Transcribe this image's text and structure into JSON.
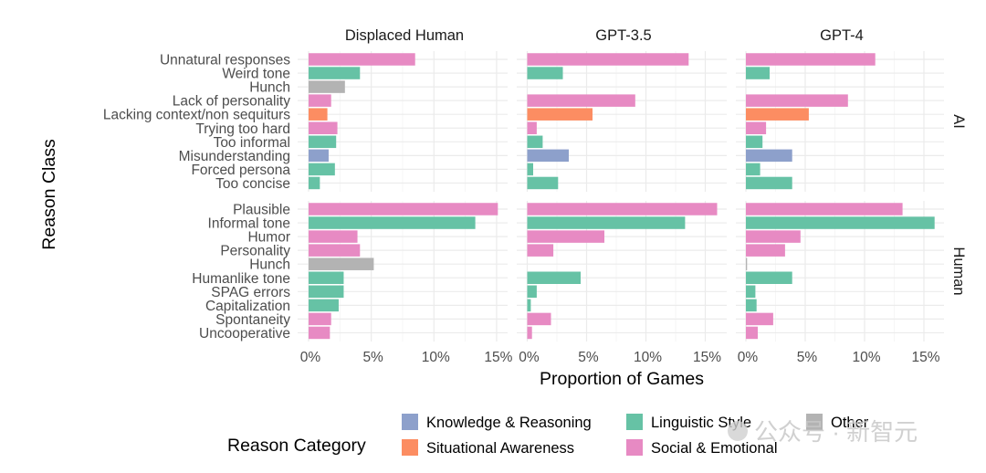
{
  "chart_data": {
    "type": "bar",
    "orientation": "horizontal",
    "facets": {
      "columns": [
        "Displaced Human",
        "GPT-3.5",
        "GPT-4"
      ],
      "rows": [
        "AI",
        "Human"
      ]
    },
    "xlabel": "Proportion of Games",
    "ylabel": "Reason Class",
    "x_ticks": [
      "0%",
      "5%",
      "10%",
      "15%"
    ],
    "xlim": [
      0,
      16.5
    ],
    "x_unit": "percent",
    "grid": true,
    "legend": {
      "title": "Reason Category",
      "placement": "bottom",
      "entries": [
        {
          "name": "Knowledge & Reasoning",
          "color": "#8DA0CB"
        },
        {
          "name": "Situational Awareness",
          "color": "#FC8D62"
        },
        {
          "name": "Linguistic Style",
          "color": "#66C2A5"
        },
        {
          "name": "Social & Emotional",
          "color": "#E78AC3"
        },
        {
          "name": "Other",
          "color": "#B3B3B3"
        }
      ]
    },
    "groups": [
      {
        "row": "AI",
        "categories": [
          {
            "label": "Unnatural responses",
            "category": "Social & Emotional"
          },
          {
            "label": "Weird tone",
            "category": "Linguistic Style"
          },
          {
            "label": "Hunch",
            "category": "Other"
          },
          {
            "label": "Lack of personality",
            "category": "Social & Emotional"
          },
          {
            "label": "Lacking context/non sequiturs",
            "category": "Situational Awareness"
          },
          {
            "label": "Trying too hard",
            "category": "Social & Emotional"
          },
          {
            "label": "Too informal",
            "category": "Linguistic Style"
          },
          {
            "label": "Misunderstanding",
            "category": "Knowledge & Reasoning"
          },
          {
            "label": "Forced persona",
            "category": "Linguistic Style"
          },
          {
            "label": "Too concise",
            "category": "Linguistic Style"
          }
        ],
        "series": [
          {
            "name": "Displaced Human",
            "values": [
              8.5,
              4.1,
              2.9,
              1.8,
              1.5,
              2.3,
              2.2,
              1.6,
              2.1,
              0.9
            ]
          },
          {
            "name": "GPT-3.5",
            "values": [
              13.6,
              3.0,
              0,
              9.1,
              5.5,
              0.8,
              1.3,
              3.5,
              0.5,
              2.6
            ]
          },
          {
            "name": "GPT-4",
            "values": [
              10.9,
              2.0,
              0,
              8.6,
              5.3,
              1.7,
              1.4,
              3.9,
              1.2,
              3.9
            ]
          }
        ]
      },
      {
        "row": "Human",
        "categories": [
          {
            "label": "Plausible",
            "category": "Social & Emotional"
          },
          {
            "label": "Informal tone",
            "category": "Linguistic Style"
          },
          {
            "label": "Humor",
            "category": "Social & Emotional"
          },
          {
            "label": "Personality",
            "category": "Social & Emotional"
          },
          {
            "label": "Hunch",
            "category": "Other"
          },
          {
            "label": "Humanlike tone",
            "category": "Linguistic Style"
          },
          {
            "label": "SPAG errors",
            "category": "Linguistic Style"
          },
          {
            "label": "Capitalization",
            "category": "Linguistic Style"
          },
          {
            "label": "Spontaneity",
            "category": "Social & Emotional"
          },
          {
            "label": "Uncooperative",
            "category": "Social & Emotional"
          }
        ],
        "series": [
          {
            "name": "Displaced Human",
            "values": [
              15.1,
              13.3,
              3.9,
              4.1,
              5.2,
              2.8,
              2.8,
              2.4,
              1.8,
              1.7
            ]
          },
          {
            "name": "GPT-3.5",
            "values": [
              16.0,
              13.3,
              6.5,
              2.2,
              0,
              4.5,
              0.8,
              0.3,
              2.0,
              0.4
            ]
          },
          {
            "name": "GPT-4",
            "values": [
              13.2,
              15.9,
              4.6,
              3.3,
              0.1,
              3.9,
              0.8,
              0.9,
              2.3,
              1.0
            ]
          }
        ]
      }
    ]
  },
  "watermark": {
    "text": "公众号 · 新智元"
  }
}
